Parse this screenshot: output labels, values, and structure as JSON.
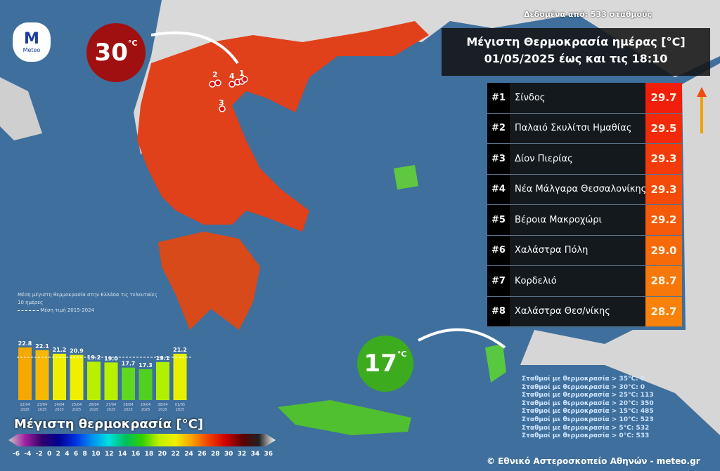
{
  "header": {
    "source": "Δεδομένα από: 533 σταθμούς",
    "title_line1": "Μέγιστη Θερμοκρασία ημέρας [°C]",
    "title_line2": "01/05/2025 έως και τις 18:10"
  },
  "logo": {
    "text": "Meteo",
    "letter": "M"
  },
  "ranking": [
    {
      "rank": "#1",
      "name": "Σίνδος",
      "value": "29.7",
      "color": "#f01e0a"
    },
    {
      "rank": "#2",
      "name": "Παλαιό Σκυλίτσι Ημαθίας",
      "value": "29.5",
      "color": "#f22a0a"
    },
    {
      "rank": "#3",
      "name": "Δίον Πιερίας",
      "value": "29.3",
      "color": "#f33a0a"
    },
    {
      "rank": "#4",
      "name": "Νέα Μάλγαρα Θεσσαλονίκης",
      "value": "29.3",
      "color": "#f44a0a"
    },
    {
      "rank": "#5",
      "name": "Βέροια Μακροχώρι",
      "value": "29.2",
      "color": "#f55a0a"
    },
    {
      "rank": "#6",
      "name": "Χαλάστρα Πόλη",
      "value": "29.0",
      "color": "#f66a0a"
    },
    {
      "rank": "#7",
      "name": "Κορδελιό",
      "value": "28.7",
      "color": "#f7780a"
    },
    {
      "rank": "#8",
      "name": "Χαλάστρα Θεσ/νίκης",
      "value": "28.7",
      "color": "#f8820a"
    }
  ],
  "max_bubble": {
    "value": "30",
    "unit": "°C",
    "color": "#a01010"
  },
  "min_bubble": {
    "value": "17",
    "unit": "°C",
    "color": "#3cac1e"
  },
  "station_markers": [
    "1",
    "2",
    "3",
    "4",
    "5",
    "6",
    "7"
  ],
  "stats": [
    "Σταθμοί με θερμοκρασία > 35°C: 0",
    "Σταθμοί με θερμοκρασία > 30°C: 0",
    "Σταθμοί με θερμοκρασία > 25°C: 113",
    "Σταθμοί με θερμοκρασία > 20°C: 350",
    "Σταθμοί με θερμοκρασία > 15°C: 485",
    "Σταθμοί με θερμοκρασία > 10°C: 523",
    "Σταθμοί με θερμοκρασία > 5°C: 532",
    "Σταθμοί με θερμοκρασία > 0°C: 533"
  ],
  "copyright": "© Εθνικό Αστεροσκοπείο Αθηνών - meteo.gr",
  "legend_title": "Μέγιστη θερμοκρασία [°C]",
  "colorbar_ticks": [
    "-6",
    "-4",
    "-2",
    "0",
    "2",
    "4",
    "6",
    "8",
    "10",
    "12",
    "14",
    "16",
    "18",
    "20",
    "22",
    "24",
    "26",
    "28",
    "30",
    "32",
    "34",
    "36"
  ],
  "colorbar_colors": [
    "#c8c8c8",
    "#a020a0",
    "#30006a",
    "#000090",
    "#0030e0",
    "#0090f0",
    "#00e0e0",
    "#00c060",
    "#30d000",
    "#c0f000",
    "#f0f000",
    "#f8a000",
    "#f04000",
    "#d00000",
    "#600000",
    "#202020",
    "#ffffff"
  ],
  "chart_data": {
    "type": "bar",
    "title": "Μέση μέγιστη θερμοκρασία στην Ελλάδα τις τελευταίες 10 ημέρες",
    "categories": [
      "22/04 2025",
      "23/04 2025",
      "24/04 2025",
      "25/04 2025",
      "26/04 2025",
      "27/04 2025",
      "28/04 2025",
      "29/04 2025",
      "30/04 2025",
      "01/05 2025"
    ],
    "values": [
      22.8,
      22.1,
      21.2,
      20.9,
      19.2,
      19.0,
      17.7,
      17.3,
      19.1,
      21.2
    ],
    "value_labels": [
      "22.8",
      "22.1",
      "21.2",
      "20.9",
      "19.2",
      "19.0",
      "17.7",
      "17.3",
      "19.1",
      "21.2"
    ],
    "bar_colors": [
      "#f5a800",
      "#f7b800",
      "#eef000",
      "#eef000",
      "#b8f000",
      "#b8f000",
      "#60d820",
      "#50d020",
      "#b0f000",
      "#e8f000"
    ],
    "reference_line": {
      "label": "Μέση τιμή 2015-2024",
      "value": 20.3,
      "style": "dashed"
    },
    "ylim": [
      9.5,
      23.5
    ]
  }
}
